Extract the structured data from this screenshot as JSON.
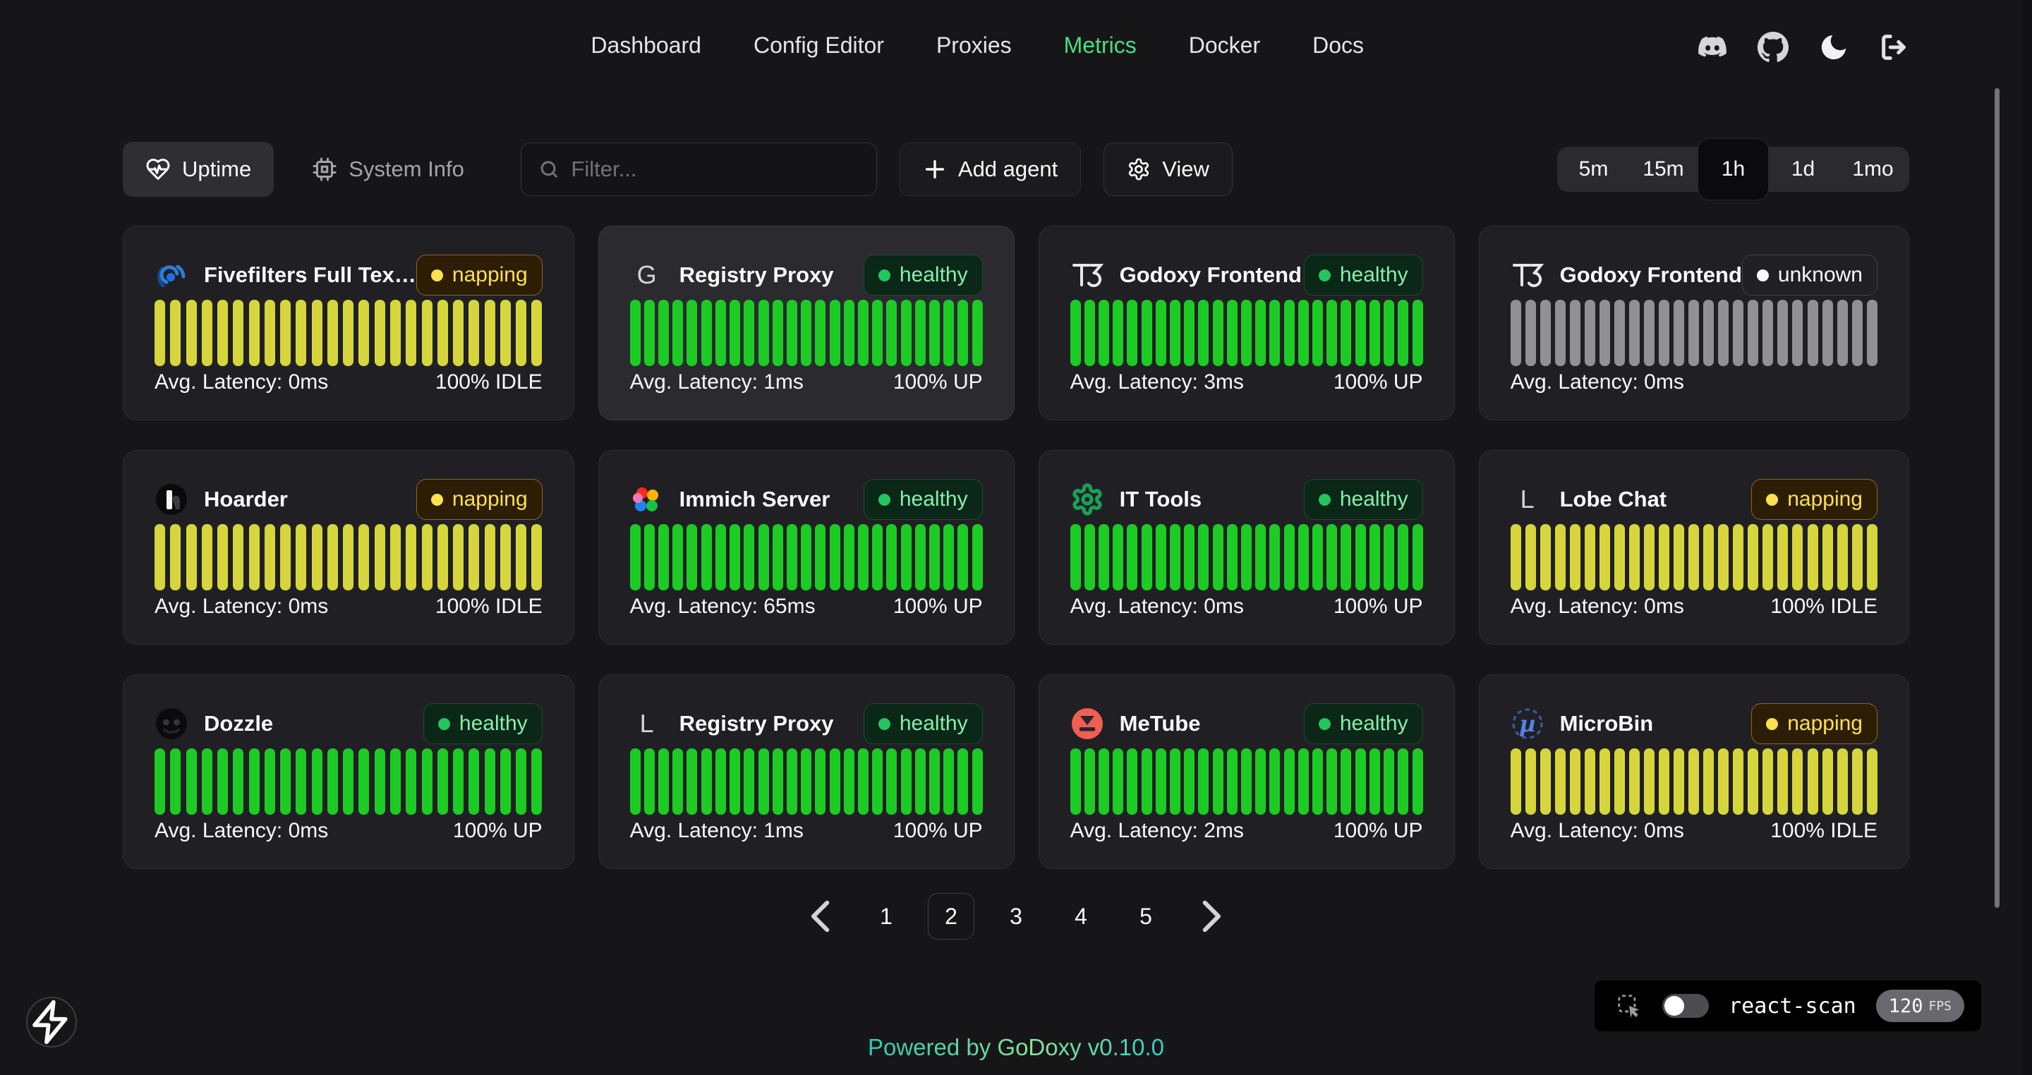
{
  "nav": {
    "items": [
      {
        "label": "Dashboard",
        "active": false
      },
      {
        "label": "Config Editor",
        "active": false
      },
      {
        "label": "Proxies",
        "active": false
      },
      {
        "label": "Metrics",
        "active": true
      },
      {
        "label": "Docker",
        "active": false
      },
      {
        "label": "Docs",
        "active": false
      }
    ],
    "icons": [
      {
        "name": "discord"
      },
      {
        "name": "github"
      },
      {
        "name": "moon"
      },
      {
        "name": "logout"
      }
    ]
  },
  "toolbar": {
    "tabs": [
      {
        "label": "Uptime",
        "icon": "heart-pulse",
        "active": true
      },
      {
        "label": "System Info",
        "icon": "cpu",
        "active": false
      }
    ],
    "filter_placeholder": "Filter...",
    "add_agent_label": "Add agent",
    "view_label": "View",
    "time_ranges": [
      "5m",
      "15m",
      "1h",
      "1d",
      "1mo"
    ],
    "active_range": "1h"
  },
  "statuses": {
    "healthy": {
      "label": "healthy",
      "text": "#86efac",
      "dot": "#23c55e",
      "bg": "#0b2717",
      "border": "#1e4b2c",
      "bar": "#1ccb24"
    },
    "napping": {
      "label": "napping",
      "text": "#fbe14e",
      "dot": "#fbe14e",
      "bg": "#2e1d05",
      "border": "#99621a",
      "bar": "#d6d63c"
    },
    "unknown": {
      "label": "unknown",
      "text": "#fafafa",
      "dot": "#fafafa",
      "bg": "transparent",
      "border": "#3f3f46",
      "bar": "#909095"
    }
  },
  "bars_per_card": 25,
  "services": [
    {
      "name": "Fivefilters Full Tex…",
      "icon": "fivefilters",
      "status": "napping",
      "latency": "Avg. Latency: 0ms",
      "uptime": "100% IDLE",
      "highlighted": false
    },
    {
      "name": "Registry Proxy",
      "icon": "letter-g",
      "status": "healthy",
      "latency": "Avg. Latency: 1ms",
      "uptime": "100% UP",
      "highlighted": true
    },
    {
      "name": "Godoxy Frontend",
      "icon": "t3",
      "status": "healthy",
      "latency": "Avg. Latency: 3ms",
      "uptime": "100% UP",
      "highlighted": false
    },
    {
      "name": "Godoxy Frontend",
      "icon": "t3",
      "status": "unknown",
      "latency": "Avg. Latency: 0ms",
      "uptime": "",
      "highlighted": false
    },
    {
      "name": "Hoarder",
      "icon": "hoarder",
      "status": "napping",
      "latency": "Avg. Latency: 0ms",
      "uptime": "100% IDLE",
      "highlighted": false
    },
    {
      "name": "Immich Server",
      "icon": "immich",
      "status": "healthy",
      "latency": "Avg. Latency: 65ms",
      "uptime": "100% UP",
      "highlighted": false
    },
    {
      "name": "IT Tools",
      "icon": "it-tools",
      "status": "healthy",
      "latency": "Avg. Latency: 0ms",
      "uptime": "100% UP",
      "highlighted": false
    },
    {
      "name": "Lobe Chat",
      "icon": "letter-l",
      "status": "napping",
      "latency": "Avg. Latency: 0ms",
      "uptime": "100% IDLE",
      "highlighted": false
    },
    {
      "name": "Dozzle",
      "icon": "dozzle",
      "status": "healthy",
      "latency": "Avg. Latency: 0ms",
      "uptime": "100% UP",
      "highlighted": false
    },
    {
      "name": "Registry Proxy",
      "icon": "letter-l",
      "status": "healthy",
      "latency": "Avg. Latency: 1ms",
      "uptime": "100% UP",
      "highlighted": false
    },
    {
      "name": "MeTube",
      "icon": "metube",
      "status": "healthy",
      "latency": "Avg. Latency: 2ms",
      "uptime": "100% UP",
      "highlighted": false
    },
    {
      "name": "MicroBin",
      "icon": "microbin",
      "status": "napping",
      "latency": "Avg. Latency: 0ms",
      "uptime": "100% IDLE",
      "highlighted": false
    }
  ],
  "pagination": {
    "pages": [
      "1",
      "2",
      "3",
      "4",
      "5"
    ],
    "active": "2"
  },
  "footer": {
    "powered_by": "Powered by",
    "brand": "GoDoxy",
    "version": "v0.10.0"
  },
  "react_scan": {
    "label": "react-scan",
    "fps": "120",
    "fps_unit": "FPS",
    "toggle_on": false
  }
}
